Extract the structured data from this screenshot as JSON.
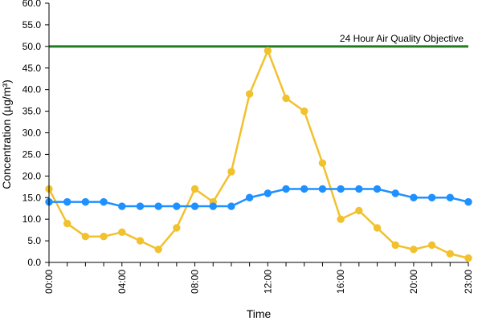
{
  "chart_data": {
    "type": "line",
    "xlabel": "Time",
    "ylabel": "Concentration (µg/m³)",
    "ylim": [
      0,
      60
    ],
    "ytick_step": 5,
    "ytick_labels": [
      "0.0",
      "5.0",
      "10.0",
      "15.0",
      "20.0",
      "25.0",
      "30.0",
      "35.0",
      "40.0",
      "45.0",
      "50.0",
      "55.0",
      "60.0"
    ],
    "xtick_labels": [
      "00:00",
      "04:00",
      "08:00",
      "12:00",
      "16:00",
      "20:00",
      "23:00"
    ],
    "xtick_hours": [
      0,
      4,
      8,
      12,
      16,
      20,
      23
    ],
    "x": [
      "00:00",
      "01:00",
      "02:00",
      "03:00",
      "04:00",
      "05:00",
      "06:00",
      "07:00",
      "08:00",
      "09:00",
      "10:00",
      "11:00",
      "12:00",
      "13:00",
      "14:00",
      "15:00",
      "16:00",
      "17:00",
      "18:00",
      "19:00",
      "20:00",
      "21:00",
      "22:00",
      "23:00"
    ],
    "series": [
      {
        "color": "#F2C12E",
        "values": [
          17,
          9,
          6,
          6,
          7,
          5,
          3,
          8,
          17,
          14,
          21,
          39,
          49,
          38,
          35,
          23,
          10,
          12,
          8,
          4,
          3,
          4,
          2,
          1
        ]
      },
      {
        "color": "#1E90FF",
        "values": [
          14,
          14,
          14,
          14,
          13,
          13,
          13,
          13,
          13,
          13,
          13,
          15,
          16,
          17,
          17,
          17,
          17,
          17,
          17,
          16,
          15,
          15,
          15,
          14
        ]
      }
    ],
    "reference_line": {
      "value": 50,
      "label": "24 Hour Air Quality Objective",
      "color": "#1E7D1E"
    },
    "grid": false,
    "legend": "none"
  }
}
